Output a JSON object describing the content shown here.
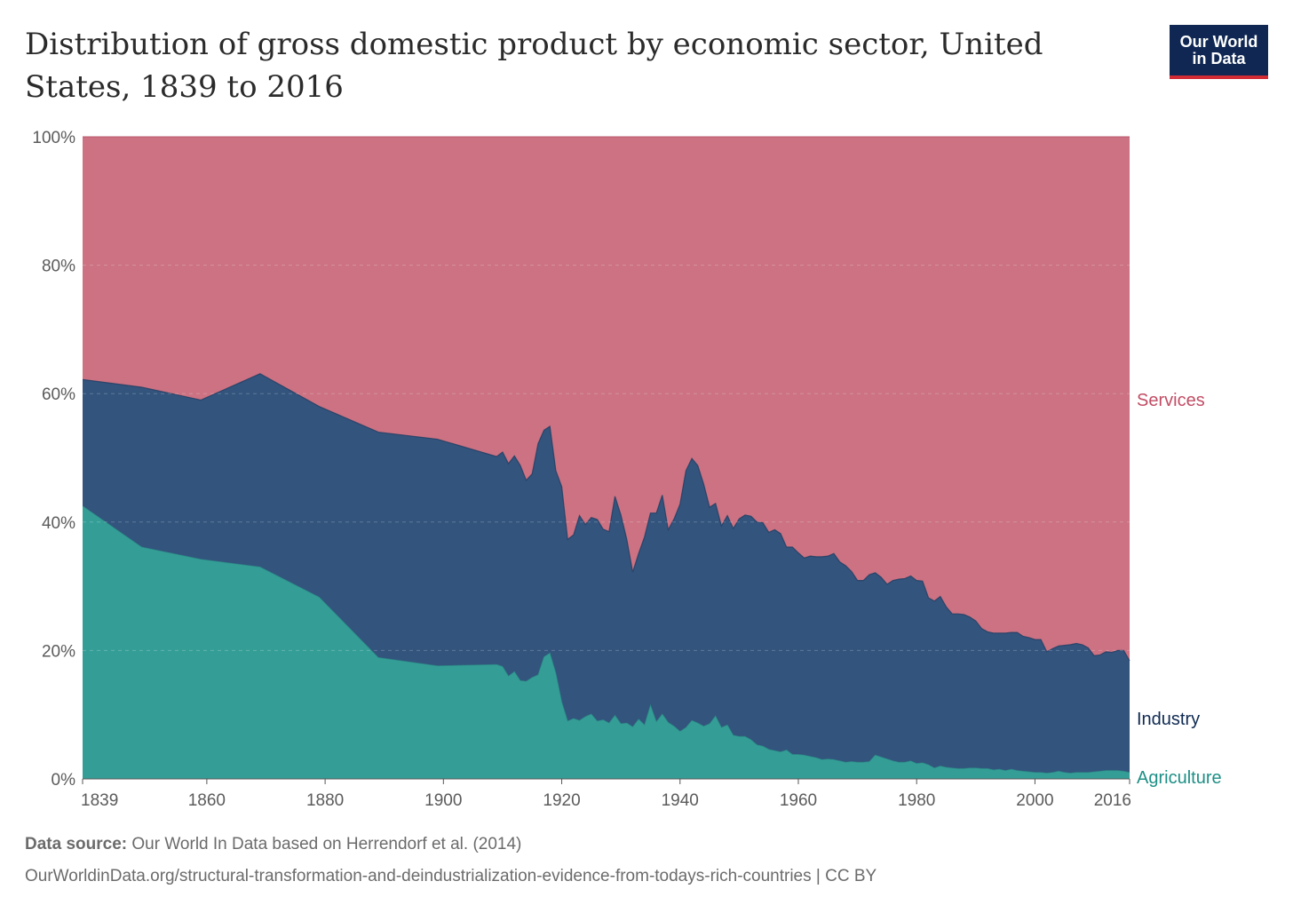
{
  "title": "Distribution of gross domestic product by economic sector, United States, 1839 to 2016",
  "logo": {
    "line1": "Our World",
    "line2": "in Data"
  },
  "footer": {
    "source_label": "Data source:",
    "source_text": "Our World In Data based on Herrendorf et al. (2014)",
    "url_line": "OurWorldinData.org/structural-transformation-and-deindustrialization-evidence-from-todays-rich-countries | CC BY"
  },
  "chart_data": {
    "type": "area",
    "stacked": true,
    "x_tick_labels": [
      "1839",
      "1860",
      "1880",
      "1900",
      "1920",
      "1940",
      "1960",
      "1980",
      "2000",
      "2016"
    ],
    "y_tick_labels": [
      "0%",
      "20%",
      "40%",
      "60%",
      "80%",
      "100%"
    ],
    "xlim": [
      1839,
      2016
    ],
    "ylim": [
      0,
      100
    ],
    "grid": "horizontal dashed",
    "legend": "inline-right",
    "series": [
      {
        "name": "Agriculture",
        "color": "#349e96",
        "x": [
          1839,
          1849,
          1859,
          1869,
          1879,
          1889,
          1899,
          1909,
          1910,
          1911,
          1912,
          1913,
          1914,
          1915,
          1916,
          1917,
          1918,
          1919,
          1920,
          1921,
          1922,
          1923,
          1924,
          1925,
          1926,
          1927,
          1928,
          1929,
          1930,
          1931,
          1932,
          1933,
          1934,
          1935,
          1936,
          1937,
          1938,
          1939,
          1940,
          1941,
          1942,
          1943,
          1944,
          1945,
          1946,
          1947,
          1948,
          1949,
          1950,
          1951,
          1952,
          1953,
          1954,
          1955,
          1956,
          1957,
          1958,
          1959,
          1960,
          1961,
          1962,
          1963,
          1964,
          1965,
          1966,
          1967,
          1968,
          1969,
          1970,
          1971,
          1972,
          1973,
          1974,
          1975,
          1976,
          1977,
          1978,
          1979,
          1980,
          1981,
          1982,
          1983,
          1984,
          1985,
          1986,
          1987,
          1988,
          1989,
          1990,
          1991,
          1992,
          1993,
          1994,
          1995,
          1996,
          1997,
          1998,
          1999,
          2000,
          2001,
          2002,
          2003,
          2004,
          2005,
          2006,
          2007,
          2008,
          2009,
          2010,
          2011,
          2012,
          2013,
          2014,
          2015,
          2016
        ],
        "y": [
          42.5,
          36.1,
          34.2,
          33.0,
          28.3,
          18.9,
          17.6,
          17.8,
          17.5,
          16.0,
          16.7,
          15.3,
          15.2,
          15.8,
          16.2,
          19.0,
          19.6,
          16.5,
          12.0,
          9.0,
          9.4,
          9.1,
          9.7,
          10.1,
          9.0,
          9.2,
          8.7,
          9.9,
          8.6,
          8.7,
          8.1,
          9.3,
          8.4,
          11.5,
          8.9,
          10.1,
          8.8,
          8.2,
          7.4,
          8.0,
          9.1,
          8.7,
          8.2,
          8.6,
          9.8,
          8.0,
          8.4,
          6.8,
          6.6,
          6.6,
          6.1,
          5.3,
          5.1,
          4.6,
          4.4,
          4.2,
          4.5,
          3.8,
          3.8,
          3.7,
          3.5,
          3.3,
          3.0,
          3.1,
          3.0,
          2.8,
          2.6,
          2.7,
          2.6,
          2.6,
          2.7,
          3.7,
          3.4,
          3.1,
          2.8,
          2.6,
          2.6,
          2.8,
          2.4,
          2.5,
          2.2,
          1.7,
          2.0,
          1.8,
          1.7,
          1.6,
          1.6,
          1.7,
          1.7,
          1.6,
          1.6,
          1.4,
          1.5,
          1.3,
          1.5,
          1.3,
          1.2,
          1.1,
          1.0,
          1.0,
          0.9,
          1.0,
          1.2,
          1.0,
          0.9,
          1.0,
          1.0,
          1.0,
          1.1,
          1.2,
          1.3,
          1.3,
          1.3,
          1.2,
          1.0
        ]
      },
      {
        "name": "Industry",
        "color": "#33547d",
        "x": [
          1839,
          1849,
          1859,
          1869,
          1879,
          1889,
          1899,
          1909,
          1910,
          1911,
          1912,
          1913,
          1914,
          1915,
          1916,
          1917,
          1918,
          1919,
          1920,
          1921,
          1922,
          1923,
          1924,
          1925,
          1926,
          1927,
          1928,
          1929,
          1930,
          1931,
          1932,
          1933,
          1934,
          1935,
          1936,
          1937,
          1938,
          1939,
          1940,
          1941,
          1942,
          1943,
          1944,
          1945,
          1946,
          1947,
          1948,
          1949,
          1950,
          1951,
          1952,
          1953,
          1954,
          1955,
          1956,
          1957,
          1958,
          1959,
          1960,
          1961,
          1962,
          1963,
          1964,
          1965,
          1966,
          1967,
          1968,
          1969,
          1970,
          1971,
          1972,
          1973,
          1974,
          1975,
          1976,
          1977,
          1978,
          1979,
          1980,
          1981,
          1982,
          1983,
          1984,
          1985,
          1986,
          1987,
          1988,
          1989,
          1990,
          1991,
          1992,
          1993,
          1994,
          1995,
          1996,
          1997,
          1998,
          1999,
          2000,
          2001,
          2002,
          2003,
          2004,
          2005,
          2006,
          2007,
          2008,
          2009,
          2010,
          2011,
          2012,
          2013,
          2014,
          2015,
          2016
        ],
        "y": [
          19.7,
          24.9,
          24.8,
          30.1,
          29.7,
          35.1,
          35.3,
          32.4,
          33.4,
          33.1,
          33.6,
          33.5,
          31.3,
          31.7,
          36.0,
          35.3,
          35.3,
          31.5,
          33.5,
          28.3,
          28.6,
          31.9,
          29.9,
          30.6,
          31.4,
          29.7,
          29.8,
          34.1,
          32.5,
          28.6,
          24.1,
          25.8,
          29.3,
          29.9,
          32.5,
          34.1,
          30.0,
          32.3,
          35.4,
          40.0,
          40.8,
          40.1,
          37.7,
          33.7,
          33.1,
          31.4,
          32.6,
          32.2,
          33.9,
          34.5,
          34.8,
          34.7,
          34.8,
          33.8,
          34.4,
          34.0,
          31.6,
          32.3,
          31.4,
          30.7,
          31.2,
          31.3,
          31.6,
          31.6,
          32.1,
          31.0,
          30.6,
          29.6,
          28.3,
          28.3,
          29.1,
          28.4,
          28.0,
          27.2,
          28.1,
          28.5,
          28.6,
          28.8,
          28.5,
          28.3,
          26.0,
          26.0,
          26.4,
          25.0,
          24.0,
          24.1,
          24.0,
          23.5,
          22.9,
          21.8,
          21.3,
          21.3,
          21.2,
          21.4,
          21.3,
          21.5,
          21.0,
          20.9,
          20.7,
          20.7,
          18.9,
          19.3,
          19.5,
          19.8,
          20.0,
          20.1,
          19.9,
          19.4,
          18.1,
          18.1,
          18.5,
          18.4,
          18.7,
          18.8,
          17.4
        ]
      },
      {
        "name": "Services",
        "color": "#cc7282",
        "note": "remainder to 100%"
      }
    ]
  }
}
